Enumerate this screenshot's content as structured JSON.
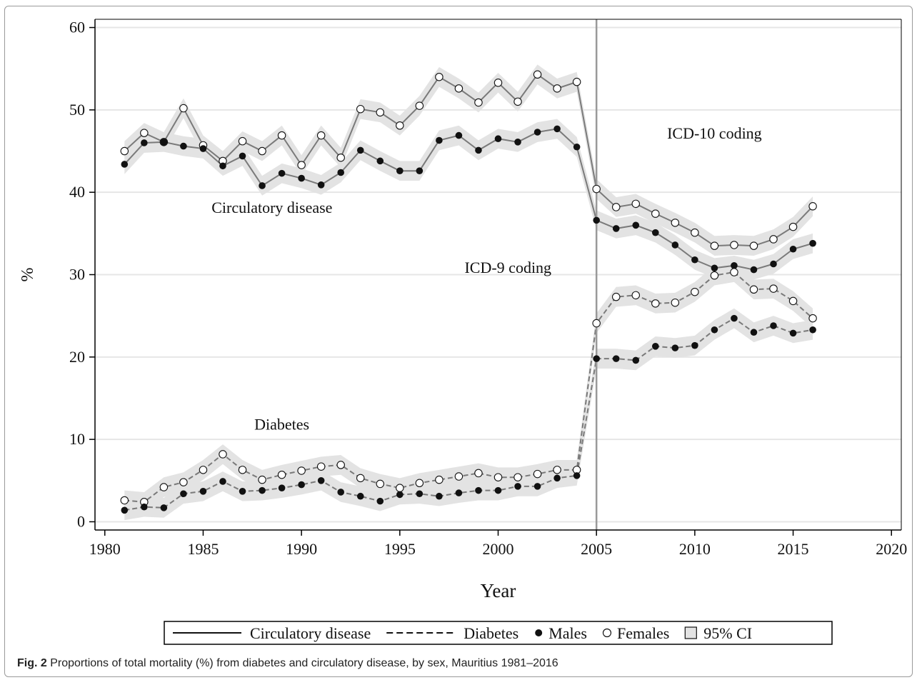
{
  "chart_data": {
    "type": "line",
    "xlabel": "Year",
    "ylabel": "%",
    "xlim": [
      1979.5,
      2020.5
    ],
    "ylim": [
      -1,
      61
    ],
    "xticks": [
      1980,
      1985,
      1990,
      1995,
      2000,
      2005,
      2010,
      2015,
      2020
    ],
    "yticks": [
      0,
      10,
      20,
      30,
      40,
      50,
      60
    ],
    "grid": "horizontal",
    "vline": 2005,
    "ci_halfwidth": 1.2,
    "x": [
      1981,
      1982,
      1983,
      1984,
      1985,
      1986,
      1987,
      1988,
      1989,
      1990,
      1991,
      1992,
      1993,
      1994,
      1995,
      1996,
      1997,
      1998,
      1999,
      2000,
      2001,
      2002,
      2003,
      2004,
      2005,
      2006,
      2007,
      2008,
      2009,
      2010,
      2011,
      2012,
      2013,
      2014,
      2015,
      2016
    ],
    "series": [
      {
        "disease": "Circulatory disease",
        "sex": "Females",
        "style": "solid",
        "marker": "open",
        "values": [
          45.0,
          47.2,
          46.1,
          50.2,
          45.7,
          43.8,
          46.2,
          45.0,
          46.9,
          43.3,
          46.9,
          44.2,
          50.1,
          49.7,
          48.1,
          50.5,
          54.0,
          52.6,
          50.9,
          53.3,
          51.0,
          54.3,
          52.6,
          53.4,
          40.4,
          38.2,
          38.6,
          37.4,
          36.3,
          35.1,
          33.5,
          33.6,
          33.5,
          34.3,
          35.8,
          38.3
        ]
      },
      {
        "disease": "Circulatory disease",
        "sex": "Males",
        "style": "solid",
        "marker": "filled",
        "values": [
          43.4,
          46.0,
          46.1,
          45.6,
          45.3,
          43.2,
          44.4,
          40.8,
          42.3,
          41.7,
          40.9,
          42.4,
          45.1,
          43.8,
          42.6,
          42.6,
          46.3,
          46.9,
          45.1,
          46.5,
          46.1,
          47.3,
          47.7,
          45.5,
          36.6,
          35.6,
          36.0,
          35.1,
          33.6,
          31.8,
          30.8,
          31.1,
          30.6,
          31.3,
          33.1,
          33.8
        ]
      },
      {
        "disease": "Diabetes",
        "sex": "Females",
        "style": "dashed",
        "marker": "open",
        "values": [
          2.6,
          2.4,
          4.2,
          4.8,
          6.3,
          8.2,
          6.3,
          5.1,
          5.7,
          6.2,
          6.7,
          6.9,
          5.3,
          4.6,
          4.1,
          4.7,
          5.1,
          5.5,
          5.9,
          5.4,
          5.4,
          5.8,
          6.3,
          6.3,
          24.1,
          27.3,
          27.5,
          26.5,
          26.6,
          27.9,
          29.9,
          30.3,
          28.2,
          28.3,
          26.8,
          24.7
        ]
      },
      {
        "disease": "Diabetes",
        "sex": "Males",
        "style": "dashed",
        "marker": "filled",
        "values": [
          1.4,
          1.8,
          1.7,
          3.4,
          3.7,
          4.9,
          3.7,
          3.8,
          4.1,
          4.5,
          5.0,
          3.6,
          3.1,
          2.5,
          3.3,
          3.4,
          3.1,
          3.5,
          3.8,
          3.8,
          4.3,
          4.3,
          5.3,
          5.6,
          19.8,
          19.8,
          19.6,
          21.3,
          21.1,
          21.4,
          23.3,
          24.7,
          23.0,
          23.8,
          22.9,
          23.3
        ]
      }
    ],
    "annotations": [
      {
        "text": "Circulatory disease",
        "x": 1988.5,
        "y": 37.5
      },
      {
        "text": "Diabetes",
        "x": 1989.0,
        "y": 11.2
      },
      {
        "text": "ICD-9 coding",
        "x": 2000.5,
        "y": 30.2
      },
      {
        "text": "ICD-10 coding",
        "x": 2011.0,
        "y": 46.5
      }
    ],
    "legend": {
      "placement": "bottom",
      "items": [
        {
          "label": "Circulatory disease",
          "kind": "solid-line"
        },
        {
          "label": "Diabetes",
          "kind": "dashed-line"
        },
        {
          "label": "Males",
          "kind": "filled-dot"
        },
        {
          "label": "Females",
          "kind": "open-dot"
        },
        {
          "label": "95% CI",
          "kind": "box"
        }
      ]
    },
    "colors": {
      "line": "#7a7a7a",
      "ci": "#e3e3e3",
      "grid": "#e6e6e6",
      "vline": "#999999",
      "marker": "#111111"
    }
  },
  "caption": {
    "label": "Fig. 2",
    "text": " Proportions of total mortality (%) from diabetes and circulatory disease, by sex, Mauritius 1981–2016"
  }
}
